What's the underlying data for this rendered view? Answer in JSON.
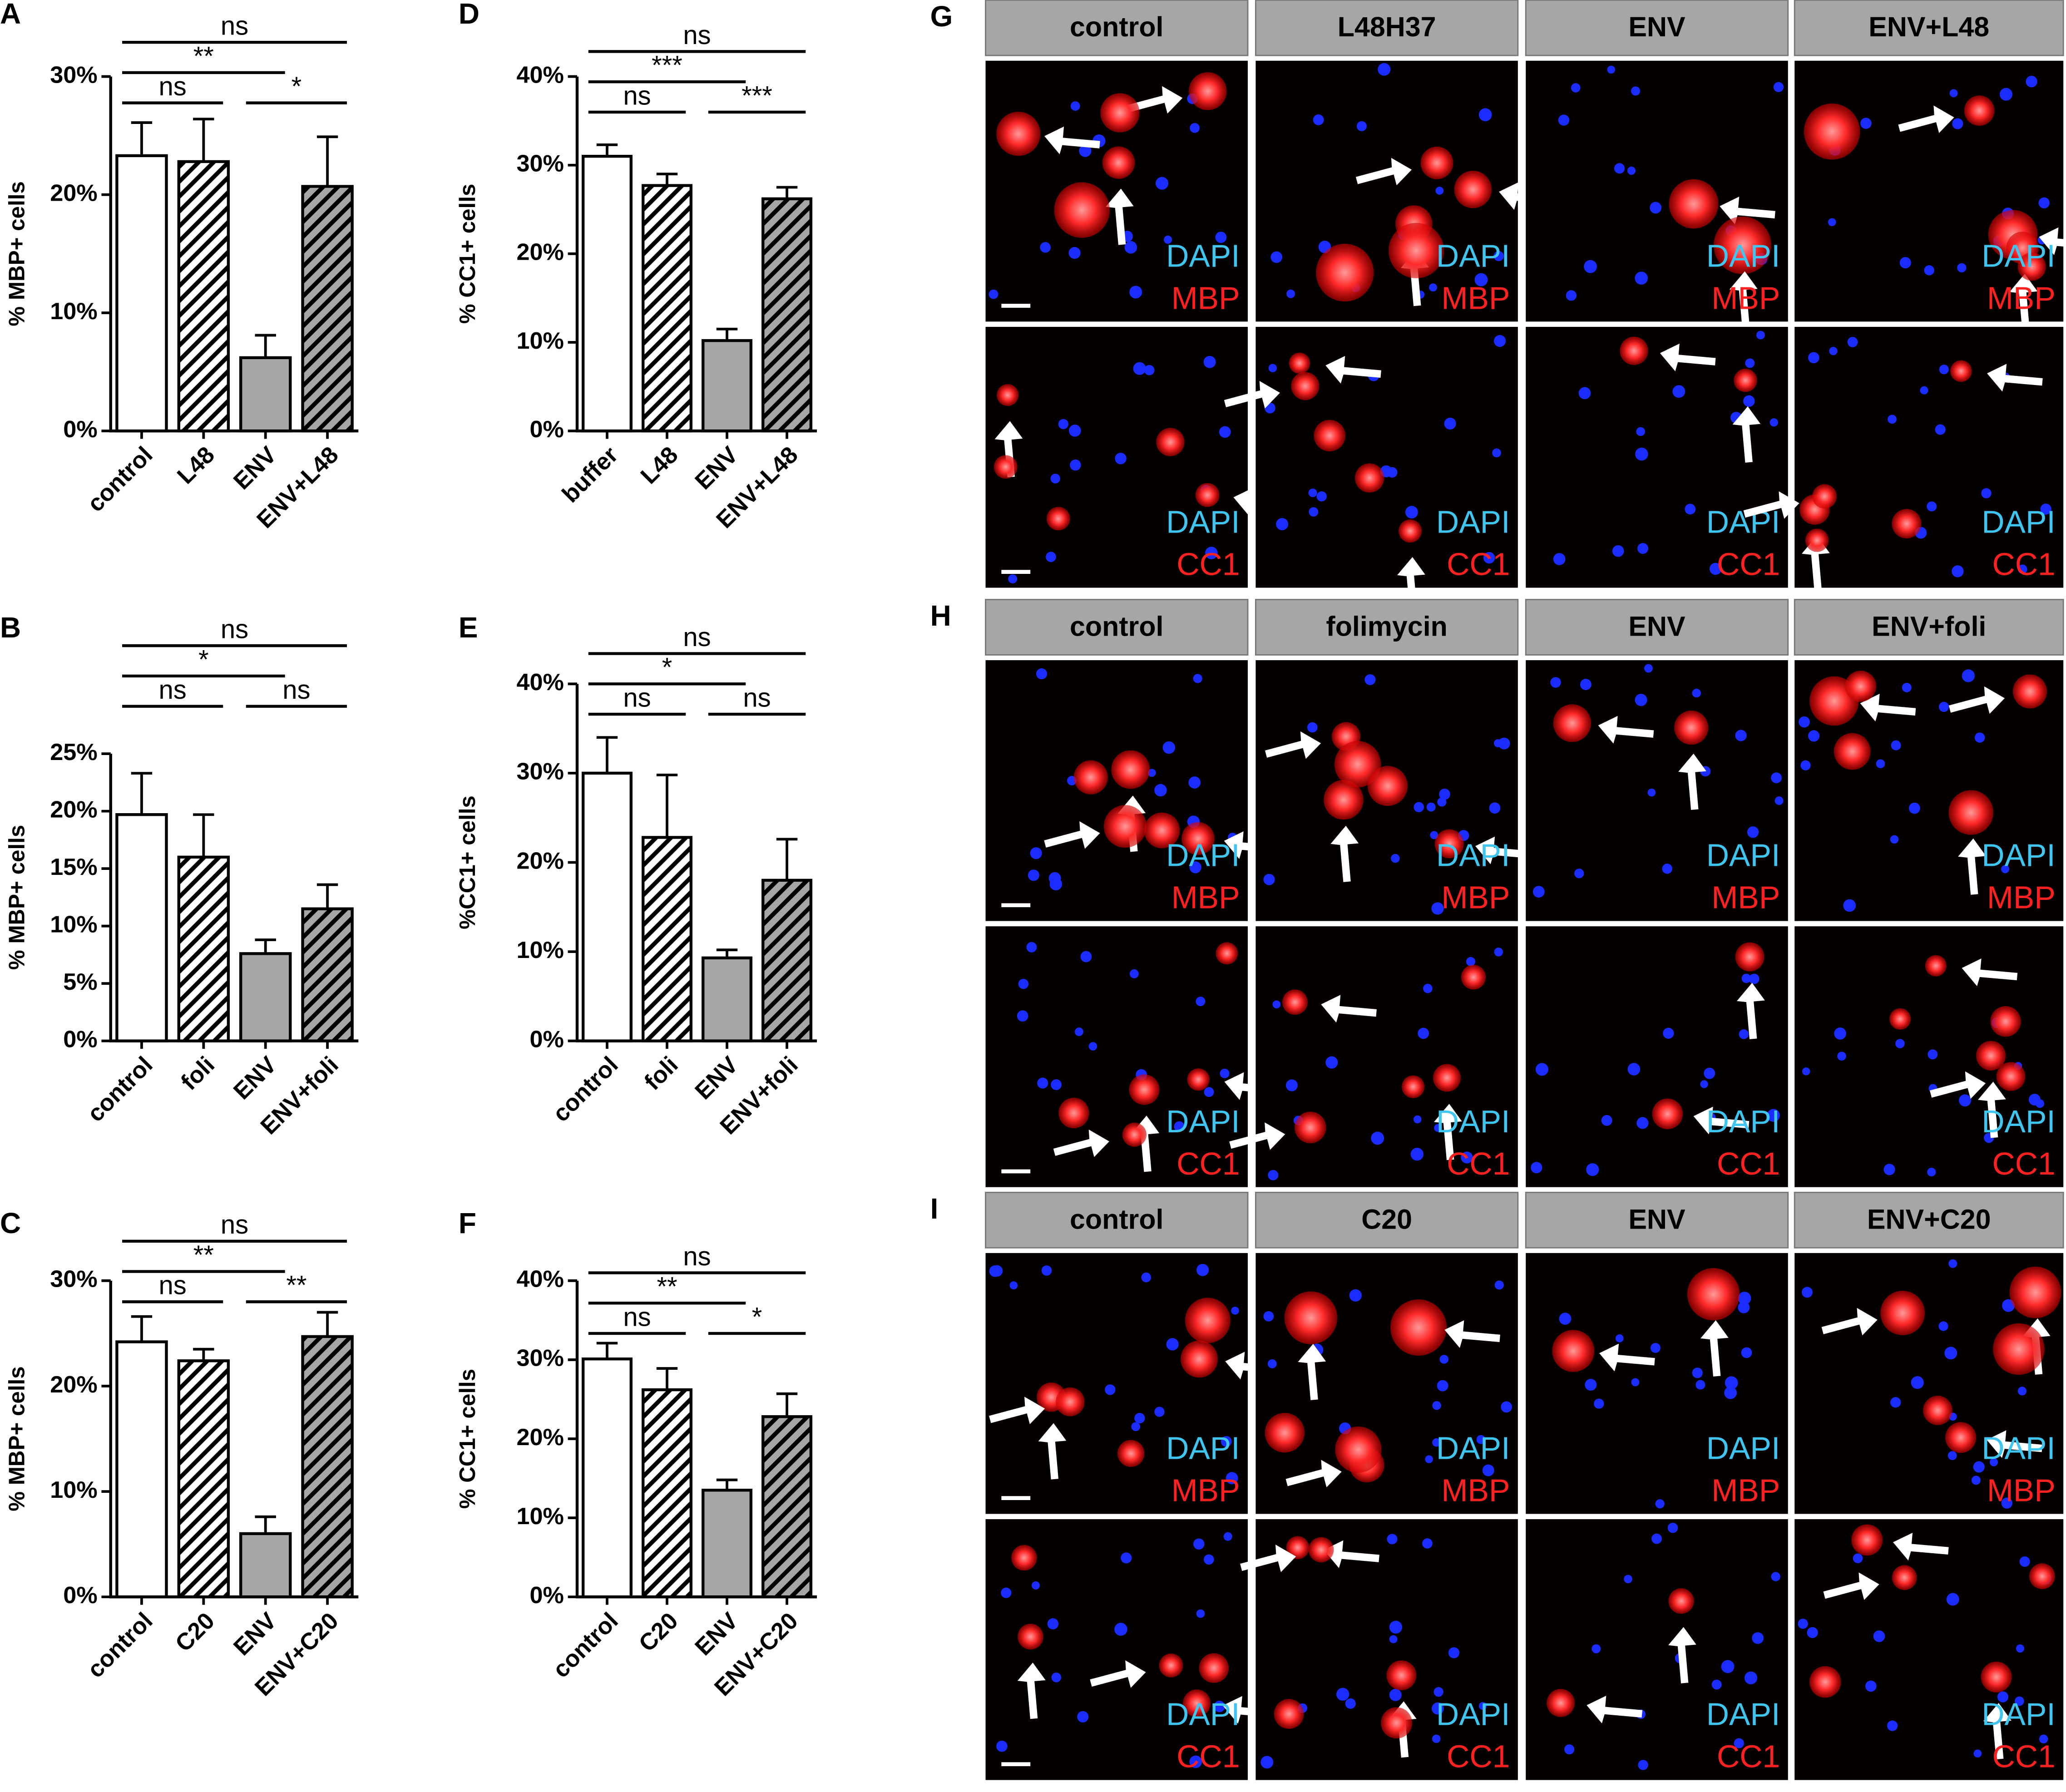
{
  "chart_data": [
    {
      "type": "bar",
      "panel": "A",
      "ylabel": "% MBP+ cells",
      "categories": [
        "control",
        "L48",
        "ENV",
        "ENV+L48"
      ],
      "values": [
        23.3,
        22.8,
        6.2,
        20.7
      ],
      "errors": [
        2.8,
        3.6,
        1.9,
        4.2
      ],
      "colors": [
        "#ffffff",
        "#ffffff",
        "#a6a6a6",
        "#a6a6a6"
      ],
      "patterns": [
        "solid",
        "hatch",
        "solid",
        "hatch"
      ],
      "ylim": [
        0,
        30
      ],
      "yticks": [
        {
          "value": 0,
          "label": "0%"
        },
        {
          "value": 10,
          "label": "10%"
        },
        {
          "value": 20,
          "label": "20%"
        },
        {
          "value": 30,
          "label": "30%"
        }
      ],
      "comparisons": [
        {
          "label": "ns",
          "from": 0,
          "to": 3
        },
        {
          "label": "**",
          "from": 0,
          "to": 2
        },
        {
          "label": "ns",
          "from": 0,
          "to": 1
        },
        {
          "label": "*",
          "from": 2,
          "to": 3
        }
      ]
    },
    {
      "type": "bar",
      "panel": "B",
      "ylabel": "% MBP+ cells",
      "categories": [
        "control",
        "foli",
        "ENV",
        "ENV+foli"
      ],
      "values": [
        19.7,
        16.0,
        7.6,
        11.5
      ],
      "errors": [
        3.6,
        3.7,
        1.2,
        2.1
      ],
      "colors": [
        "#ffffff",
        "#ffffff",
        "#a6a6a6",
        "#a6a6a6"
      ],
      "patterns": [
        "solid",
        "hatch",
        "solid",
        "hatch"
      ],
      "ylim": [
        0,
        25
      ],
      "yticks": [
        {
          "value": 0,
          "label": "0%"
        },
        {
          "value": 5,
          "label": "5%"
        },
        {
          "value": 10,
          "label": "10%"
        },
        {
          "value": 15,
          "label": "15%"
        },
        {
          "value": 20,
          "label": "20%"
        },
        {
          "value": 25,
          "label": "25%"
        }
      ],
      "comparisons": [
        {
          "label": "ns",
          "from": 0,
          "to": 3
        },
        {
          "label": "*",
          "from": 0,
          "to": 2
        },
        {
          "label": "ns",
          "from": 0,
          "to": 1
        },
        {
          "label": "ns",
          "from": 2,
          "to": 3
        }
      ]
    },
    {
      "type": "bar",
      "panel": "C",
      "ylabel": "% MBP+ cells",
      "categories": [
        "control",
        "C20",
        "ENV",
        "ENV+C20"
      ],
      "values": [
        24.2,
        22.4,
        6.0,
        24.7
      ],
      "errors": [
        2.4,
        1.1,
        1.6,
        2.3
      ],
      "colors": [
        "#ffffff",
        "#ffffff",
        "#a6a6a6",
        "#a6a6a6"
      ],
      "patterns": [
        "solid",
        "hatch",
        "solid",
        "hatch"
      ],
      "ylim": [
        0,
        30
      ],
      "yticks": [
        {
          "value": 0,
          "label": "0%"
        },
        {
          "value": 10,
          "label": "10%"
        },
        {
          "value": 20,
          "label": "20%"
        },
        {
          "value": 30,
          "label": "30%"
        }
      ],
      "comparisons": [
        {
          "label": "ns",
          "from": 0,
          "to": 3
        },
        {
          "label": "**",
          "from": 0,
          "to": 2
        },
        {
          "label": "ns",
          "from": 0,
          "to": 1
        },
        {
          "label": "**",
          "from": 2,
          "to": 3
        }
      ]
    },
    {
      "type": "bar",
      "panel": "D",
      "ylabel": "% CC1+ cells",
      "categories": [
        "buffer",
        "L48",
        "ENV",
        "ENV+L48"
      ],
      "values": [
        31.0,
        27.7,
        10.2,
        26.2
      ],
      "errors": [
        1.3,
        1.3,
        1.3,
        1.3
      ],
      "colors": [
        "#ffffff",
        "#ffffff",
        "#a6a6a6",
        "#a6a6a6"
      ],
      "patterns": [
        "solid",
        "hatch",
        "solid",
        "hatch"
      ],
      "ylim": [
        0,
        40
      ],
      "yticks": [
        {
          "value": 0,
          "label": "0%"
        },
        {
          "value": 10,
          "label": "10%"
        },
        {
          "value": 20,
          "label": "20%"
        },
        {
          "value": 30,
          "label": "30%"
        },
        {
          "value": 40,
          "label": "40%"
        }
      ],
      "comparisons": [
        {
          "label": "ns",
          "from": 0,
          "to": 3
        },
        {
          "label": "***",
          "from": 0,
          "to": 2
        },
        {
          "label": "ns",
          "from": 0,
          "to": 1
        },
        {
          "label": "***",
          "from": 2,
          "to": 3
        }
      ]
    },
    {
      "type": "bar",
      "panel": "E",
      "ylabel": "%CC1+ cells",
      "categories": [
        "control",
        "foli",
        "ENV",
        "ENV+foli"
      ],
      "values": [
        30.0,
        22.8,
        9.3,
        18.0
      ],
      "errors": [
        4.0,
        7.0,
        0.9,
        4.6
      ],
      "colors": [
        "#ffffff",
        "#ffffff",
        "#a6a6a6",
        "#a6a6a6"
      ],
      "patterns": [
        "solid",
        "hatch",
        "solid",
        "hatch"
      ],
      "ylim": [
        0,
        40
      ],
      "yticks": [
        {
          "value": 0,
          "label": "0%"
        },
        {
          "value": 10,
          "label": "10%"
        },
        {
          "value": 20,
          "label": "20%"
        },
        {
          "value": 30,
          "label": "30%"
        },
        {
          "value": 40,
          "label": "40%"
        }
      ],
      "comparisons": [
        {
          "label": "ns",
          "from": 0,
          "to": 3
        },
        {
          "label": "*",
          "from": 0,
          "to": 2
        },
        {
          "label": "ns",
          "from": 0,
          "to": 1
        },
        {
          "label": "ns",
          "from": 2,
          "to": 3
        }
      ]
    },
    {
      "type": "bar",
      "panel": "F",
      "ylabel": "% CC1+ cells",
      "categories": [
        "control",
        "C20",
        "ENV",
        "ENV+C20"
      ],
      "values": [
        30.1,
        26.2,
        13.5,
        22.8
      ],
      "errors": [
        2.0,
        2.7,
        1.3,
        2.9
      ],
      "colors": [
        "#ffffff",
        "#ffffff",
        "#a6a6a6",
        "#a6a6a6"
      ],
      "patterns": [
        "solid",
        "hatch",
        "solid",
        "hatch"
      ],
      "ylim": [
        0,
        40
      ],
      "yticks": [
        {
          "value": 0,
          "label": "0%"
        },
        {
          "value": 10,
          "label": "10%"
        },
        {
          "value": 20,
          "label": "20%"
        },
        {
          "value": 30,
          "label": "30%"
        },
        {
          "value": 40,
          "label": "40%"
        }
      ],
      "comparisons": [
        {
          "label": "ns",
          "from": 0,
          "to": 3
        },
        {
          "label": "**",
          "from": 0,
          "to": 2
        },
        {
          "label": "ns",
          "from": 0,
          "to": 1
        },
        {
          "label": "*",
          "from": 2,
          "to": 3
        }
      ]
    }
  ],
  "image_panels": [
    {
      "panel": "G",
      "columns": [
        "control",
        "L48H37",
        "ENV",
        "ENV+L48"
      ],
      "rows": [
        [
          "DAPI",
          "MBP"
        ],
        [
          "DAPI",
          "CC1"
        ]
      ]
    },
    {
      "panel": "H",
      "columns": [
        "control",
        "folimycin",
        "ENV",
        "ENV+foli"
      ],
      "rows": [
        [
          "DAPI",
          "MBP"
        ],
        [
          "DAPI",
          "CC1"
        ]
      ]
    },
    {
      "panel": "I",
      "columns": [
        "control",
        "C20",
        "ENV",
        "ENV+C20"
      ],
      "rows": [
        [
          "DAPI",
          "MBP"
        ],
        [
          "DAPI",
          "CC1"
        ]
      ]
    }
  ]
}
